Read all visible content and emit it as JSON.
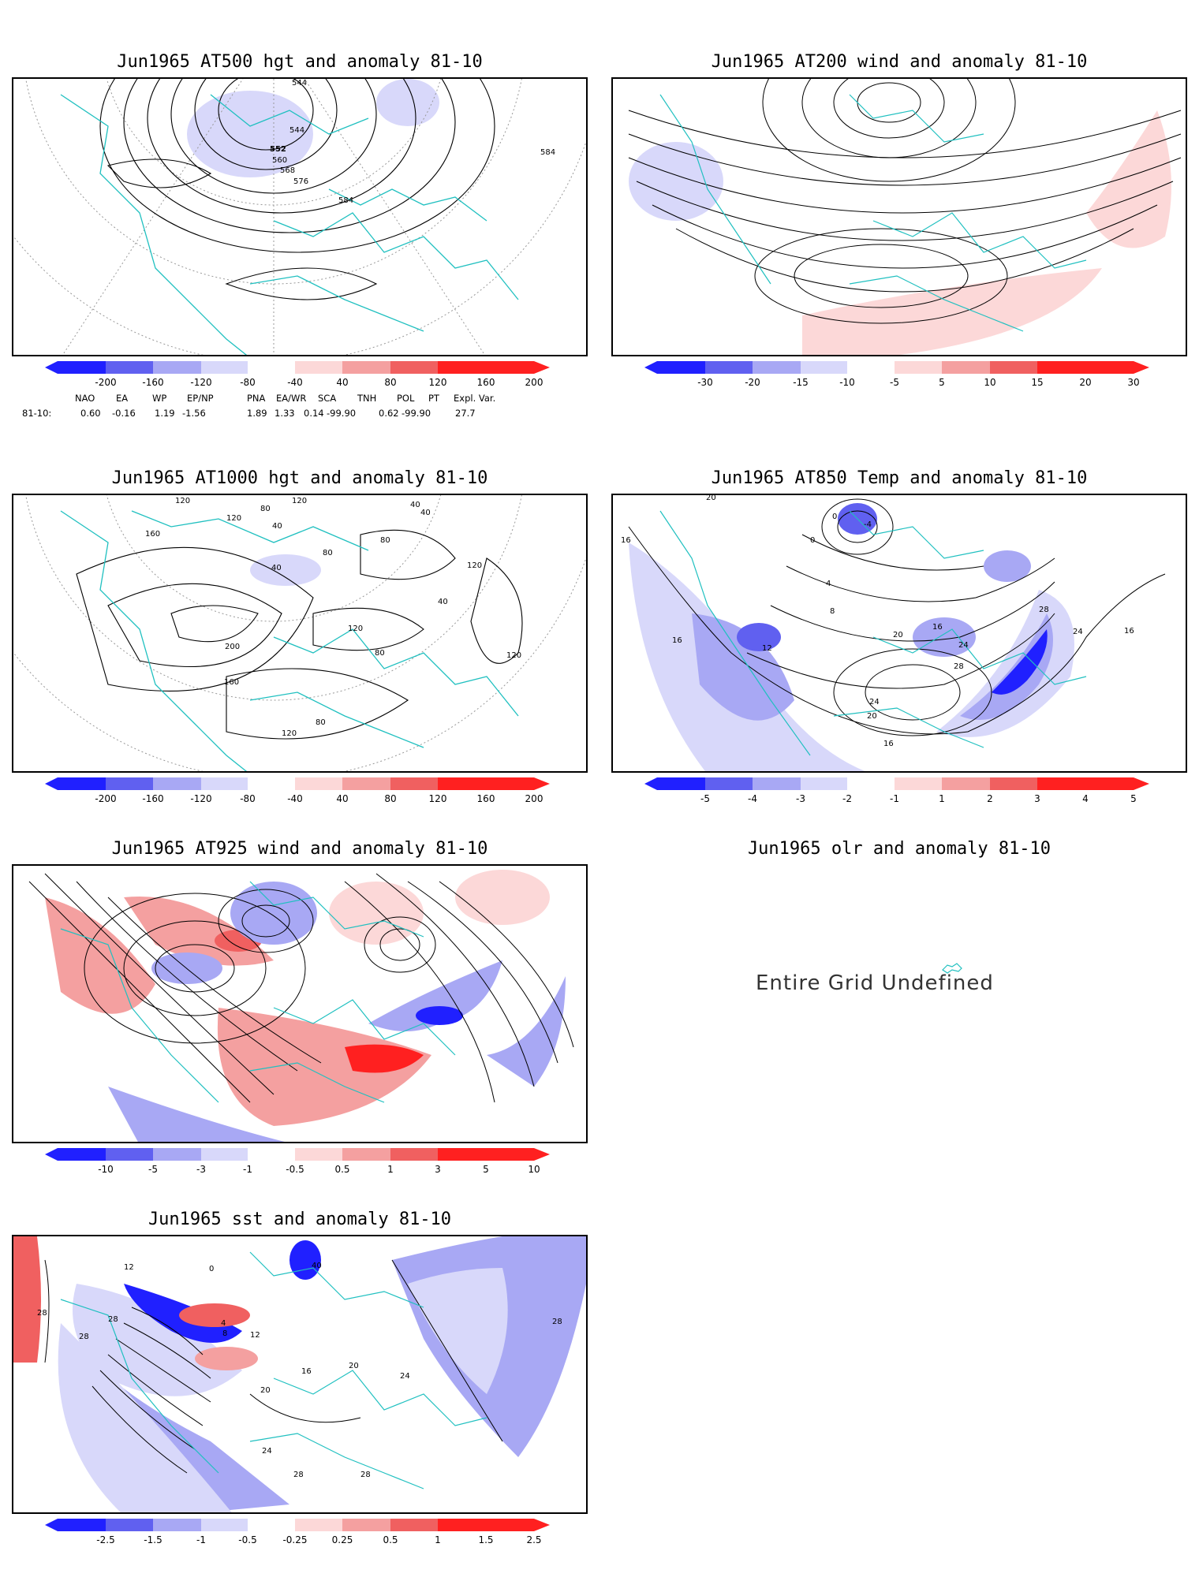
{
  "colors": {
    "coast": "#20c0c0",
    "blue_dark": "#2020ff",
    "blue_mid": "#6060f0",
    "blue_light": "#a8a8f4",
    "blue_pale": "#d8d8fa",
    "red_pale": "#fcd8d8",
    "red_light": "#f4a0a0",
    "red_mid": "#f06060",
    "red_dark": "#ff2020"
  },
  "panels": {
    "p1": {
      "title": "Jun1965 AT500 hgt and anomaly 81-10",
      "colorbar": [
        "-200",
        "-160",
        "-120",
        "-80",
        "-40",
        "40",
        "80",
        "120",
        "160",
        "200"
      ],
      "contour_labels": [
        "544",
        "544",
        "552",
        "560",
        "568",
        "576",
        "584",
        "584"
      ]
    },
    "p2": {
      "title": "Jun1965 AT200 wind and anomaly 81-10",
      "colorbar": [
        "-30",
        "-20",
        "-15",
        "-10",
        "-5",
        "5",
        "10",
        "15",
        "20",
        "30"
      ]
    },
    "p3": {
      "title": "Jun1965 AT1000 hgt and anomaly 81-10",
      "colorbar": [
        "-200",
        "-160",
        "-120",
        "-80",
        "-40",
        "40",
        "80",
        "120",
        "160",
        "200"
      ],
      "contour_labels": [
        "120",
        "120",
        "120",
        "80",
        "40",
        "160",
        "40",
        "80",
        "200",
        "160",
        "120",
        "80",
        "80",
        "120",
        "80",
        "40",
        "40",
        "40",
        "120",
        "120"
      ]
    },
    "p4": {
      "title": "Jun1965 AT850 Temp and anomaly 81-10",
      "colorbar": [
        "-5",
        "-4",
        "-3",
        "-2",
        "-1",
        "1",
        "2",
        "3",
        "4",
        "5"
      ],
      "contour_labels": [
        "16",
        "16",
        "12",
        "8",
        "4",
        "0",
        "-4",
        "0",
        "16",
        "20",
        "24",
        "28",
        "28",
        "24",
        "16",
        "24",
        "20",
        "16",
        "20"
      ]
    },
    "p5": {
      "title": "Jun1965 AT925 wind and anomaly 81-10",
      "colorbar": [
        "-10",
        "-5",
        "-3",
        "-1",
        "-0.5",
        "0.5",
        "1",
        "3",
        "5",
        "10"
      ]
    },
    "p6": {
      "title": "Jun1965 olr and anomaly 81-10",
      "message": "Entire Grid Undefined"
    },
    "p7": {
      "title": "Jun1965 sst and anomaly 81-10",
      "colorbar": [
        "-2.5",
        "-1.5",
        "-1",
        "-0.5",
        "-0.25",
        "0.25",
        "0.5",
        "1",
        "1.5",
        "2.5"
      ],
      "contour_labels": [
        "28",
        "28",
        "28",
        "4",
        "8",
        "12",
        "16",
        "20",
        "24",
        "28",
        "28",
        "28",
        "20",
        "24",
        "40",
        "12",
        "0"
      ]
    }
  },
  "indices": {
    "headers": [
      "NAO",
      "EA",
      "WP",
      "EP/NP",
      "PNA",
      "EA/WR",
      "SCA",
      "TNH",
      "POL",
      "PT",
      "Expl. Var."
    ],
    "row_label": "81-10:",
    "values": [
      "0.60",
      "-0.16",
      "1.19",
      "-1.56",
      "1.89",
      "1.33",
      "0.14",
      "-99.90",
      "0.62",
      "-99.90",
      "27.7"
    ]
  }
}
